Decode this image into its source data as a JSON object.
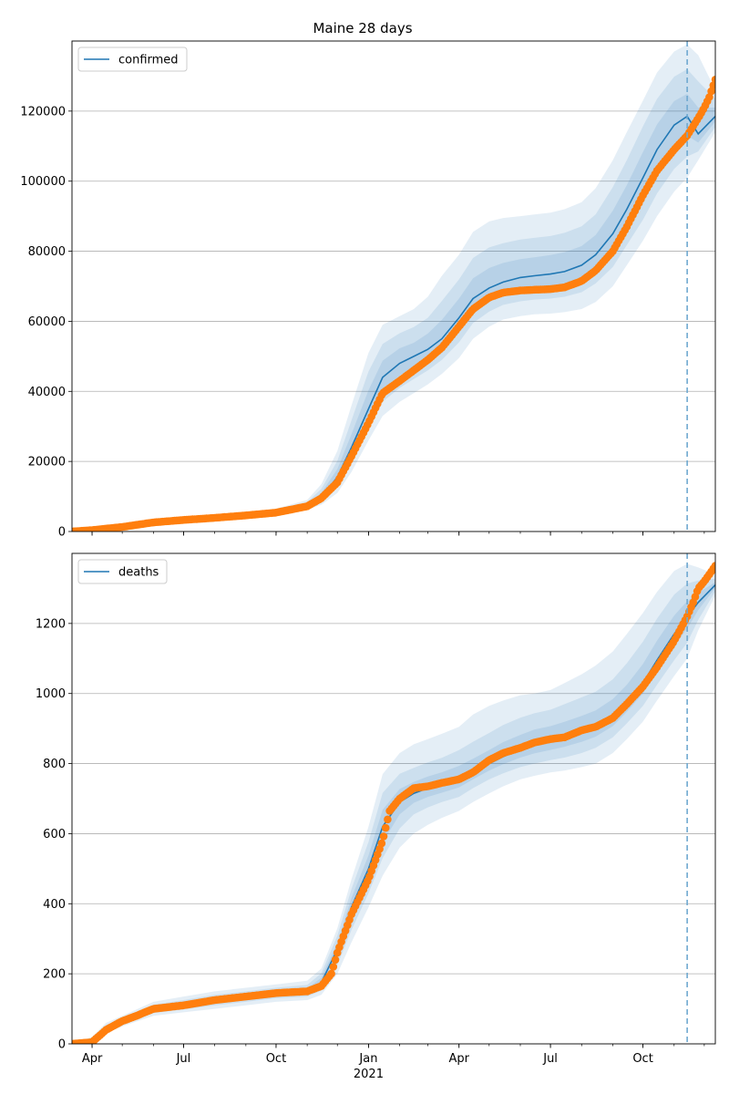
{
  "title": "Maine 28 days",
  "colors": {
    "model": "#1f77b4",
    "observed": "#ff7f0e",
    "band": "#1f77b4",
    "cutoff": "#6fa8d0",
    "grid": "#b0b0b0"
  },
  "x_tick_labels": [
    {
      "date": "2020-04-01",
      "label": "Apr",
      "sub": ""
    },
    {
      "date": "2020-07-01",
      "label": "Jul",
      "sub": ""
    },
    {
      "date": "2020-10-01",
      "label": "Oct",
      "sub": ""
    },
    {
      "date": "2021-01-01",
      "label": "Jan",
      "sub": "2021"
    },
    {
      "date": "2021-04-01",
      "label": "Apr",
      "sub": ""
    },
    {
      "date": "2021-07-01",
      "label": "Jul",
      "sub": ""
    },
    {
      "date": "2021-10-01",
      "label": "Oct",
      "sub": ""
    }
  ],
  "chart_data": [
    {
      "type": "line",
      "legend": "confirmed",
      "legend_position": "top-left",
      "grid": "horizontal",
      "xlim": [
        "2020-03-12",
        "2021-12-12"
      ],
      "ylim": [
        0,
        140000
      ],
      "yticks": [
        0,
        20000,
        40000,
        60000,
        80000,
        100000,
        120000
      ],
      "cutoff_date": "2021-11-14",
      "model": {
        "name": "confirmed",
        "x": [
          "2020-03-12",
          "2020-04-01",
          "2020-05-01",
          "2020-06-01",
          "2020-07-01",
          "2020-08-01",
          "2020-09-01",
          "2020-10-01",
          "2020-11-01",
          "2020-11-15",
          "2020-12-01",
          "2020-12-15",
          "2021-01-01",
          "2021-01-15",
          "2021-02-01",
          "2021-02-15",
          "2021-03-01",
          "2021-03-15",
          "2021-04-01",
          "2021-04-15",
          "2021-05-01",
          "2021-05-15",
          "2021-06-01",
          "2021-06-15",
          "2021-07-01",
          "2021-07-15",
          "2021-08-01",
          "2021-08-15",
          "2021-09-01",
          "2021-09-15",
          "2021-10-01",
          "2021-10-15",
          "2021-11-01",
          "2021-11-14",
          "2021-11-25",
          "2021-12-12"
        ],
        "y": [
          0,
          400,
          1200,
          2500,
          3300,
          4000,
          4700,
          5600,
          7500,
          9800,
          15500,
          24000,
          35000,
          44000,
          48000,
          50000,
          52000,
          55000,
          61000,
          66500,
          69500,
          71200,
          72500,
          73000,
          73500,
          74200,
          76000,
          79000,
          85000,
          92000,
          101000,
          109000,
          116000,
          118500,
          113500,
          118500
        ]
      },
      "bands": [
        {
          "lower": [
            0,
            250,
            900,
            2100,
            2800,
            3400,
            4000,
            4800,
            6300,
            7600,
            11000,
            17000,
            26000,
            33000,
            37000,
            39500,
            42000,
            45000,
            49500,
            55000,
            58500,
            60500,
            61500,
            62000,
            62200,
            62600,
            63500,
            65500,
            70000,
            76000,
            83000,
            90000,
            97000,
            101000,
            106000,
            114000
          ],
          "upper": [
            0,
            550,
            1500,
            3000,
            3900,
            4700,
            5500,
            6500,
            9000,
            13500,
            23000,
            36000,
            51000,
            59000,
            61500,
            63500,
            67000,
            73000,
            79000,
            85500,
            88500,
            89500,
            90000,
            90500,
            91000,
            92000,
            94000,
            98000,
            106000,
            114000,
            123000,
            131000,
            137000,
            139000,
            136000,
            126000
          ]
        },
        {
          "lower": [
            0,
            300,
            1000,
            2250,
            3000,
            3650,
            4300,
            5100,
            6800,
            8400,
            12700,
            19500,
            29000,
            37000,
            41000,
            43500,
            46000,
            49000,
            54000,
            59500,
            62800,
            64700,
            65700,
            66200,
            66500,
            67000,
            68300,
            70800,
            75500,
            81800,
            89000,
            96500,
            103500,
            107000,
            108500,
            115500
          ]
        },
        {
          "lower": [
            0,
            350,
            1100,
            2400,
            3150,
            3850,
            4500,
            5350,
            7150,
            9100,
            14100,
            21800,
            32000,
            40500,
            44500,
            47000,
            49000,
            52000,
            57500,
            63000,
            66200,
            68000,
            69200,
            69700,
            70000,
            70600,
            72200,
            75000,
            80300,
            87000,
            95000,
            102800,
            109800,
            113000,
            111000,
            117000
          ]
        }
      ],
      "observed": {
        "name": "",
        "x": [
          "2020-03-12",
          "2020-04-01",
          "2020-05-01",
          "2020-06-01",
          "2020-07-01",
          "2020-08-01",
          "2020-09-01",
          "2020-10-01",
          "2020-11-01",
          "2020-11-15",
          "2020-12-01",
          "2020-12-15",
          "2021-01-01",
          "2021-01-15",
          "2021-02-01",
          "2021-02-15",
          "2021-03-01",
          "2021-03-15",
          "2021-04-01",
          "2021-04-15",
          "2021-05-01",
          "2021-05-15",
          "2021-06-01",
          "2021-06-15",
          "2021-07-01",
          "2021-07-15",
          "2021-08-01",
          "2021-08-15",
          "2021-09-01",
          "2021-09-15",
          "2021-10-01",
          "2021-10-15",
          "2021-11-01",
          "2021-11-14",
          "2021-11-25",
          "2021-12-01",
          "2021-12-06",
          "2021-12-12"
        ],
        "y": [
          0,
          400,
          1300,
          2600,
          3300,
          3900,
          4600,
          5400,
          7200,
          9500,
          14000,
          21500,
          31000,
          39500,
          43000,
          46000,
          49000,
          52500,
          58500,
          63500,
          66800,
          68200,
          68800,
          69000,
          69200,
          69700,
          71500,
          74500,
          80000,
          87000,
          96000,
          103000,
          109000,
          113000,
          118000,
          121000,
          124000,
          129000
        ]
      }
    },
    {
      "type": "line",
      "legend": "deaths",
      "legend_position": "top-left",
      "grid": "horizontal",
      "xlim": [
        "2020-03-12",
        "2021-12-12"
      ],
      "ylim": [
        0,
        1400
      ],
      "yticks": [
        0,
        200,
        400,
        600,
        800,
        1000,
        1200
      ],
      "cutoff_date": "2021-11-14",
      "model": {
        "name": "deaths",
        "x": [
          "2020-03-12",
          "2020-04-01",
          "2020-04-15",
          "2020-05-01",
          "2020-06-01",
          "2020-07-01",
          "2020-08-01",
          "2020-09-01",
          "2020-10-01",
          "2020-11-01",
          "2020-11-15",
          "2020-12-01",
          "2020-12-15",
          "2021-01-01",
          "2021-01-15",
          "2021-02-01",
          "2021-02-15",
          "2021-03-01",
          "2021-03-15",
          "2021-04-01",
          "2021-04-15",
          "2021-05-01",
          "2021-05-15",
          "2021-06-01",
          "2021-06-15",
          "2021-07-01",
          "2021-07-15",
          "2021-08-01",
          "2021-08-15",
          "2021-09-01",
          "2021-09-15",
          "2021-10-01",
          "2021-10-15",
          "2021-11-01",
          "2021-11-14",
          "2021-11-25",
          "2021-12-12"
        ],
        "y": [
          0,
          10,
          45,
          65,
          100,
          110,
          125,
          135,
          145,
          150,
          175,
          270,
          390,
          500,
          620,
          690,
          715,
          730,
          740,
          755,
          775,
          800,
          820,
          840,
          855,
          865,
          875,
          890,
          905,
          935,
          975,
          1030,
          1095,
          1170,
          1220,
          1260,
          1310
        ]
      },
      "bands": [
        {
          "lower": [
            0,
            5,
            30,
            50,
            80,
            90,
            100,
            110,
            120,
            125,
            140,
            200,
            290,
            390,
            480,
            560,
            600,
            625,
            645,
            665,
            690,
            715,
            735,
            755,
            765,
            775,
            780,
            790,
            800,
            830,
            870,
            920,
            980,
            1050,
            1100,
            1180,
            1280
          ],
          "upper": [
            0,
            20,
            60,
            80,
            120,
            135,
            150,
            160,
            170,
            180,
            215,
            330,
            470,
            620,
            770,
            830,
            855,
            870,
            885,
            905,
            940,
            965,
            980,
            995,
            1000,
            1010,
            1030,
            1055,
            1080,
            1120,
            1170,
            1230,
            1290,
            1350,
            1370,
            1360,
            1340
          ]
        },
        {
          "lower": [
            0,
            7,
            36,
            56,
            88,
            98,
            110,
            120,
            130,
            135,
            152,
            225,
            325,
            430,
            530,
            615,
            655,
            675,
            690,
            705,
            730,
            755,
            772,
            790,
            800,
            810,
            817,
            830,
            845,
            875,
            915,
            965,
            1025,
            1095,
            1145,
            1210,
            1292
          ]
        },
        {
          "lower": [
            0,
            9,
            40,
            61,
            94,
            104,
            118,
            128,
            138,
            143,
            163,
            248,
            357,
            465,
            575,
            655,
            688,
            705,
            717,
            732,
            755,
            780,
            798,
            817,
            829,
            839,
            848,
            862,
            877,
            907,
            948,
            1000,
            1062,
            1135,
            1185,
            1238,
            1302
          ]
        }
      ],
      "observed": {
        "name": "",
        "x": [
          "2020-03-12",
          "2020-04-01",
          "2020-04-15",
          "2020-05-01",
          "2020-05-15",
          "2020-06-01",
          "2020-07-01",
          "2020-08-01",
          "2020-09-01",
          "2020-10-01",
          "2020-11-01",
          "2020-11-15",
          "2020-11-25",
          "2020-12-01",
          "2020-12-15",
          "2021-01-01",
          "2021-01-15",
          "2021-01-22",
          "2021-02-01",
          "2021-02-15",
          "2021-03-01",
          "2021-03-15",
          "2021-04-01",
          "2021-04-15",
          "2021-05-01",
          "2021-05-15",
          "2021-06-01",
          "2021-06-15",
          "2021-07-01",
          "2021-07-15",
          "2021-08-01",
          "2021-08-15",
          "2021-09-01",
          "2021-09-15",
          "2021-10-01",
          "2021-10-15",
          "2021-11-01",
          "2021-11-14",
          "2021-11-20",
          "2021-11-25",
          "2021-12-01",
          "2021-12-06",
          "2021-12-12"
        ],
        "y": [
          0,
          5,
          40,
          65,
          80,
          100,
          110,
          125,
          135,
          145,
          150,
          165,
          200,
          260,
          370,
          470,
          580,
          665,
          700,
          730,
          735,
          745,
          755,
          775,
          810,
          830,
          845,
          860,
          870,
          875,
          895,
          905,
          930,
          970,
          1020,
          1075,
          1150,
          1220,
          1260,
          1300,
          1320,
          1340,
          1365
        ]
      }
    }
  ]
}
